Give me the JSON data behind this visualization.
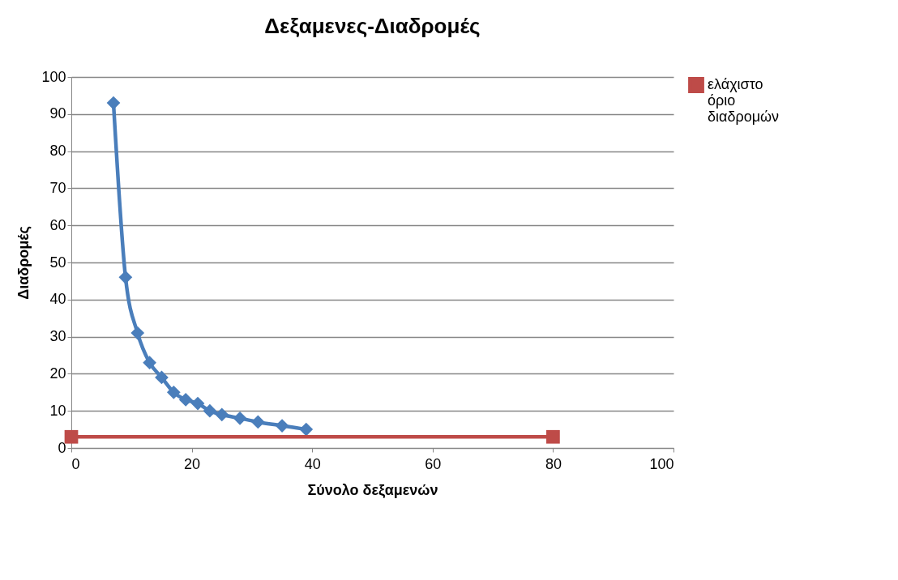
{
  "chart_data": {
    "type": "line",
    "title": "Δεξαμενες-Διαδρομές",
    "xlabel": "Σύνολο δεξαμενών",
    "ylabel": "Διαδρομές",
    "xlim": [
      0,
      100
    ],
    "xticks": [
      0,
      20,
      40,
      60,
      80,
      100
    ],
    "ylim": [
      0,
      100
    ],
    "yticks": [
      0,
      10,
      20,
      30,
      40,
      50,
      60,
      70,
      80,
      90,
      100
    ],
    "grid": "y",
    "legend": "right",
    "series": [
      {
        "color": "#4a7ebb",
        "marker": "diamond",
        "x": [
          7,
          9,
          11,
          13,
          15,
          17,
          19,
          21,
          23,
          25,
          28,
          31,
          35,
          39
        ],
        "values": [
          93,
          46,
          31,
          23,
          19,
          15,
          13,
          12,
          10,
          9,
          8,
          7,
          6,
          5
        ]
      },
      {
        "name": "ελάχιστο όριο διαδρομών",
        "color": "#be4b48",
        "marker": "square",
        "x": [
          0,
          80
        ],
        "values": [
          3,
          3
        ]
      }
    ]
  }
}
